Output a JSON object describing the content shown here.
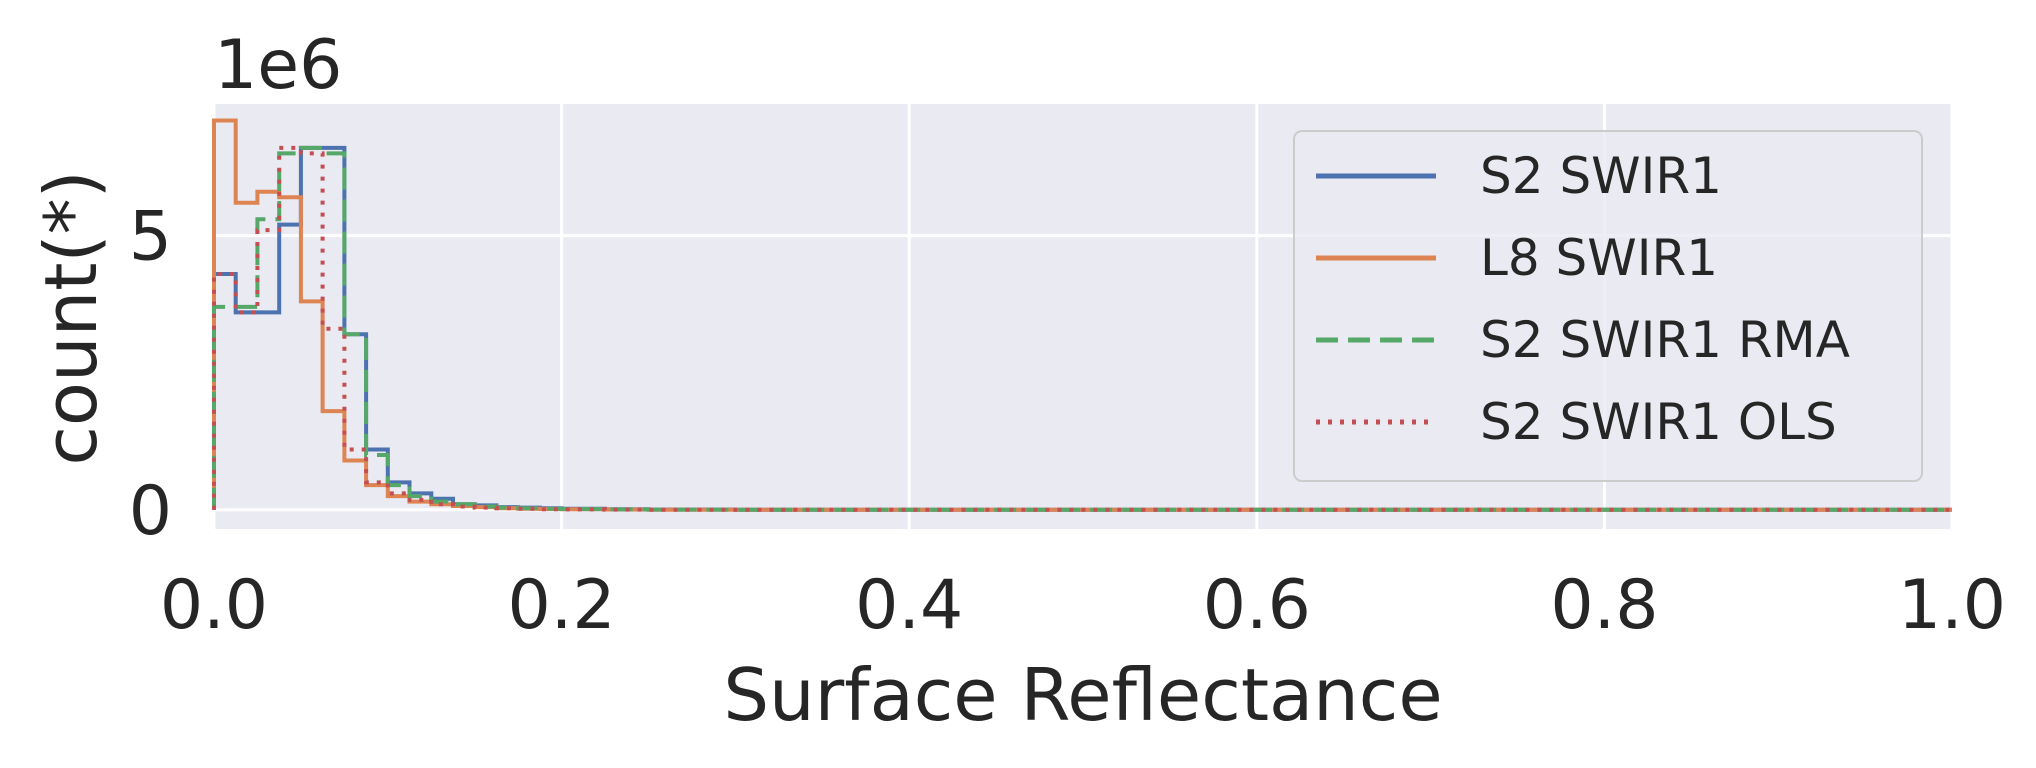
{
  "chart_data": {
    "type": "step-histogram",
    "title": "",
    "xlabel": "Surface Reflectance",
    "ylabel": "count(*)",
    "y_offset_label": "1e6",
    "xlim": [
      0.0,
      1.0
    ],
    "ylim": [
      -0.35,
      7.4
    ],
    "x_ticks": [
      0.0,
      0.2,
      0.4,
      0.6,
      0.8,
      1.0
    ],
    "x_tick_labels": [
      "0.0",
      "0.2",
      "0.4",
      "0.6",
      "0.8",
      "1.0"
    ],
    "y_ticks": [
      0,
      5
    ],
    "y_tick_labels": [
      "0",
      "5"
    ],
    "grid": true,
    "background": "#eaeaf2",
    "legend_position": "upper-right",
    "series": [
      {
        "name": "S2 SWIR1",
        "color": "#4c72b0",
        "dash": "solid",
        "edges": [
          0.0,
          0.0125,
          0.025,
          0.0375,
          0.05,
          0.0625,
          0.075,
          0.0875,
          0.1,
          0.1125,
          0.125,
          0.1375,
          0.15,
          0.1625,
          0.175,
          0.1875,
          0.2,
          0.225,
          0.25,
          0.3,
          0.4,
          0.5,
          0.6,
          0.7,
          0.8,
          0.9,
          1.0
        ],
        "counts": [
          4.3,
          3.6,
          3.6,
          5.2,
          6.6,
          6.6,
          3.2,
          1.1,
          0.5,
          0.3,
          0.2,
          0.1,
          0.08,
          0.05,
          0.04,
          0.03,
          0.02,
          0.01,
          0.005,
          0.002,
          0.001,
          0.001,
          0.001,
          0.001,
          0.001,
          0.001
        ]
      },
      {
        "name": "L8 SWIR1",
        "color": "#dd8452",
        "dash": "solid",
        "edges": [
          0.0,
          0.0125,
          0.025,
          0.0375,
          0.05,
          0.0625,
          0.075,
          0.0875,
          0.1,
          0.1125,
          0.125,
          0.1375,
          0.15,
          0.1625,
          0.175,
          0.1875,
          0.2,
          0.225,
          0.25,
          0.3,
          0.4,
          0.5,
          0.6,
          0.7,
          0.8,
          0.9,
          1.0
        ],
        "counts": [
          7.1,
          5.6,
          5.8,
          5.7,
          3.8,
          1.8,
          0.9,
          0.45,
          0.25,
          0.15,
          0.1,
          0.07,
          0.05,
          0.03,
          0.02,
          0.015,
          0.01,
          0.005,
          0.002,
          0.001,
          0.001,
          0.001,
          0.001,
          0.001,
          0.001,
          0.001
        ]
      },
      {
        "name": "S2 SWIR1 RMA",
        "color": "#55a868",
        "dash": "dashed",
        "edges": [
          0.0,
          0.0125,
          0.025,
          0.0375,
          0.05,
          0.0625,
          0.075,
          0.0875,
          0.1,
          0.1125,
          0.125,
          0.1375,
          0.15,
          0.1625,
          0.175,
          0.1875,
          0.2,
          0.225,
          0.25,
          0.3,
          0.4,
          0.5,
          0.6,
          0.7,
          0.8,
          0.9,
          1.0
        ],
        "counts": [
          3.7,
          3.7,
          5.3,
          6.5,
          6.6,
          6.5,
          3.2,
          1.0,
          0.45,
          0.25,
          0.15,
          0.1,
          0.06,
          0.04,
          0.03,
          0.02,
          0.015,
          0.008,
          0.004,
          0.002,
          0.001,
          0.001,
          0.001,
          0.001,
          0.001,
          0.001
        ]
      },
      {
        "name": "S2 SWIR1 OLS",
        "color": "#c44e52",
        "dash": "dotted",
        "edges": [
          0.0,
          0.0125,
          0.025,
          0.0375,
          0.05,
          0.0625,
          0.075,
          0.0875,
          0.1,
          0.1125,
          0.125,
          0.1375,
          0.15,
          0.1625,
          0.175,
          0.1875,
          0.2,
          0.225,
          0.25,
          0.3,
          0.4,
          0.5,
          0.6,
          0.7,
          0.8,
          0.9,
          1.0
        ],
        "counts": [
          4.3,
          3.6,
          5.1,
          6.6,
          6.5,
          3.3,
          1.1,
          0.5,
          0.3,
          0.18,
          0.1,
          0.06,
          0.04,
          0.03,
          0.02,
          0.01,
          0.008,
          0.004,
          0.002,
          0.001,
          0.001,
          0.001,
          0.001,
          0.001,
          0.001,
          0.001
        ]
      }
    ]
  }
}
